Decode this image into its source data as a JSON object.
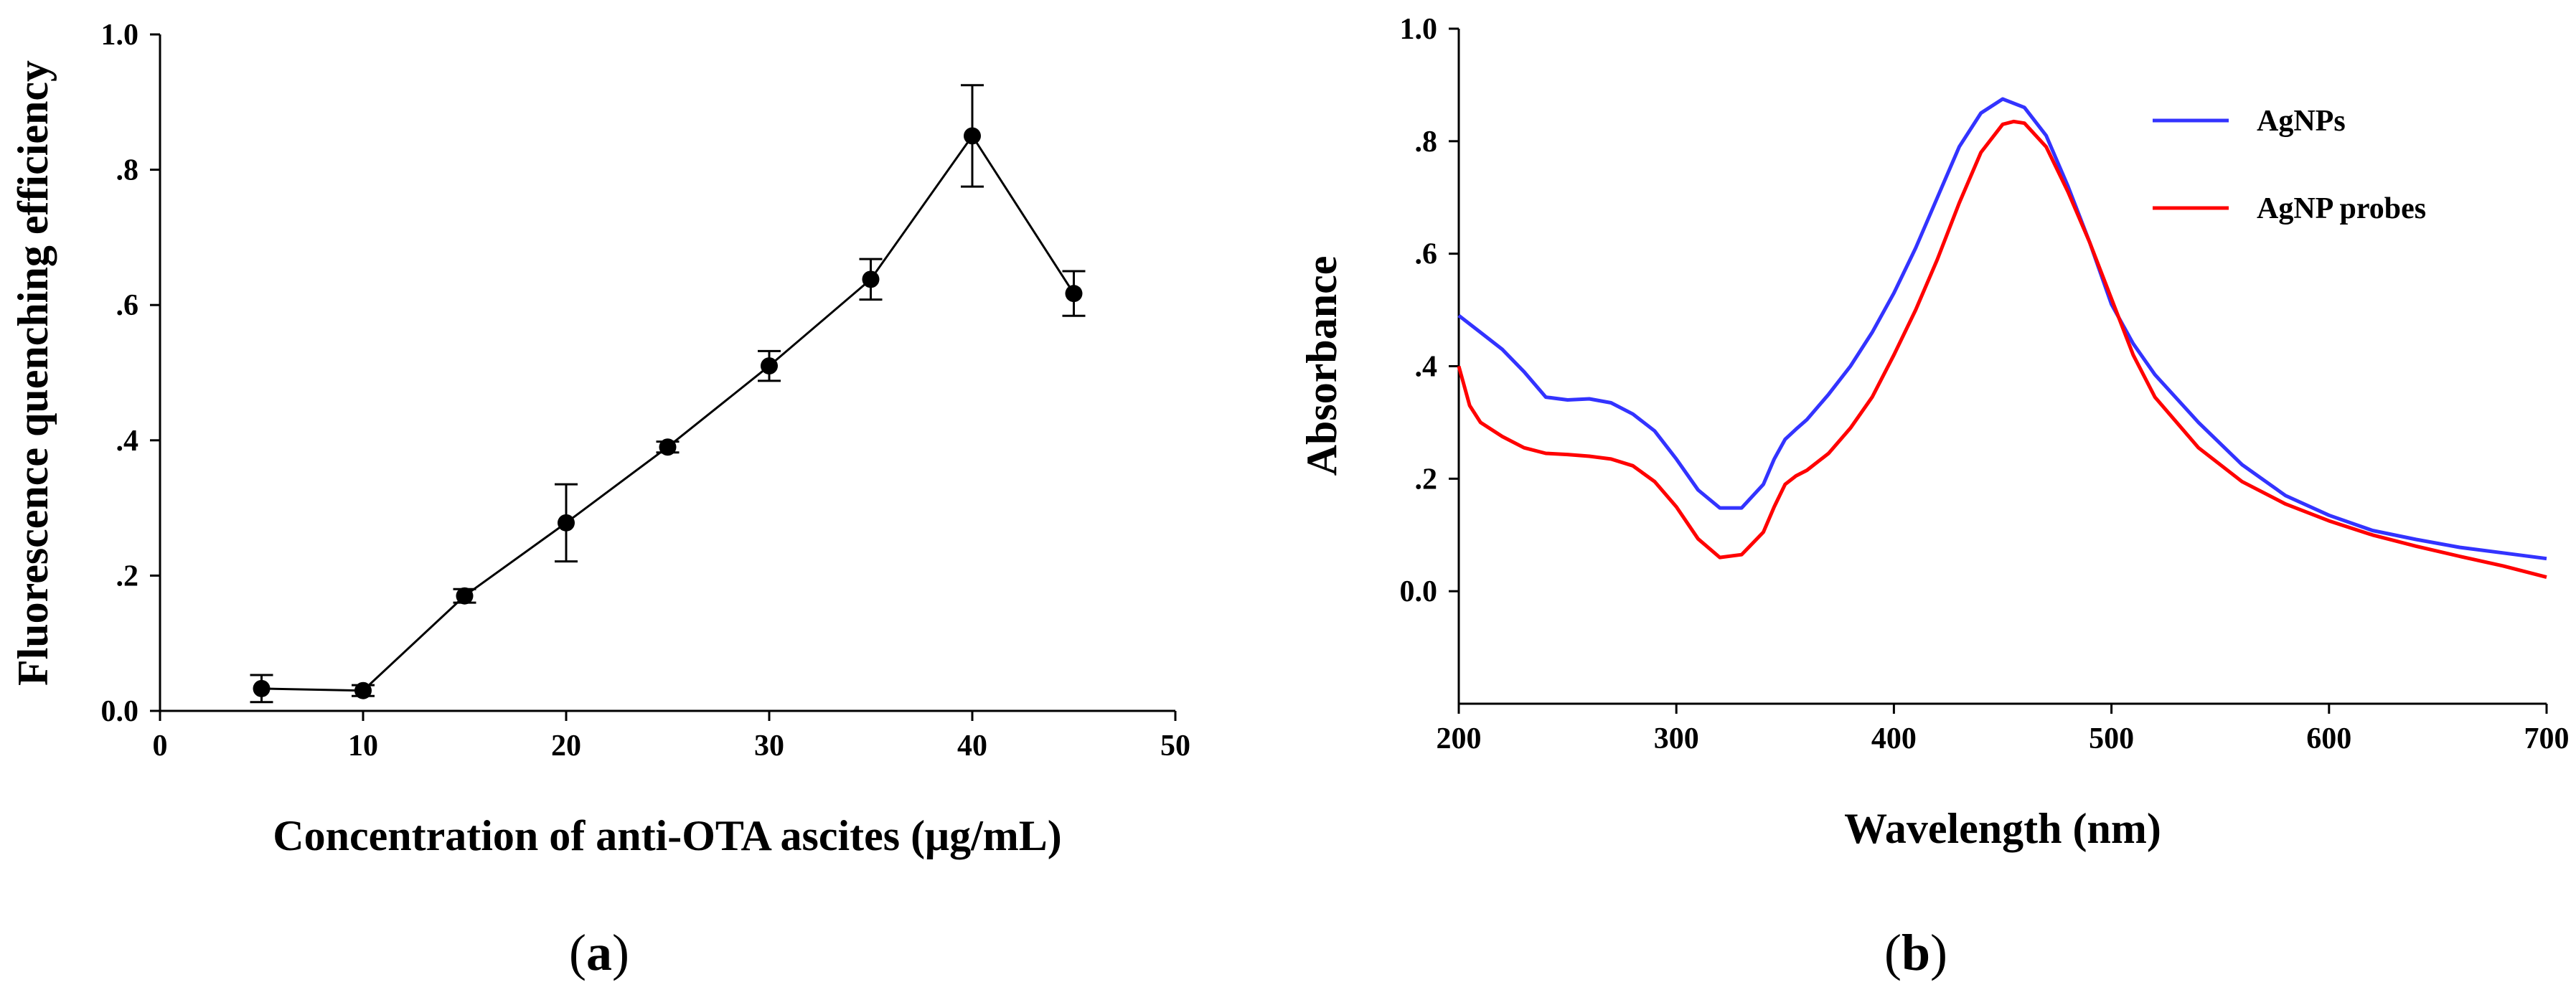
{
  "chart_data": [
    {
      "type": "line",
      "panel_label": "a",
      "title": "",
      "xlabel": "Concentration of anti-OTA ascites  (μg/mL)",
      "ylabel": "Fluorescence quenching efficiency",
      "xlim": [
        0,
        50
      ],
      "ylim": [
        0,
        1.0
      ],
      "xticks": [
        0,
        10,
        20,
        30,
        40,
        50
      ],
      "xtick_labels": [
        "0",
        "10",
        "20",
        "30",
        "40",
        "50"
      ],
      "yticks": [
        0,
        0.2,
        0.4,
        0.6,
        0.8,
        1.0
      ],
      "ytick_labels": [
        "0.0",
        ".2",
        ".4",
        ".6",
        ".8",
        "1.0"
      ],
      "grid": false,
      "series": [
        {
          "name": "quenching efficiency",
          "color": "#000000",
          "marker": "filled-circle",
          "x": [
            5,
            10,
            15,
            20,
            25,
            30,
            35,
            40,
            45
          ],
          "y": [
            0.033,
            0.03,
            0.17,
            0.278,
            0.39,
            0.51,
            0.638,
            0.85,
            0.617
          ],
          "error": [
            0.02,
            0.008,
            0.01,
            0.057,
            0.008,
            0.022,
            0.03,
            0.075,
            0.033
          ]
        }
      ]
    },
    {
      "type": "line",
      "panel_label": "b",
      "title": "",
      "xlabel": "Wavelength (nm)",
      "ylabel": "Absorbance",
      "xlim": [
        200,
        700
      ],
      "ylim": [
        -0.2,
        1.0
      ],
      "xticks": [
        200,
        300,
        400,
        500,
        600,
        700
      ],
      "xtick_labels": [
        "200",
        "300",
        "400",
        "500",
        "600",
        "700"
      ],
      "yticks": [
        0,
        0.2,
        0.4,
        0.6,
        0.8,
        1.0
      ],
      "ytick_labels": [
        "0.0",
        ".2",
        ".4",
        ".6",
        ".8",
        "1.0"
      ],
      "grid": false,
      "legend_position": "top-right",
      "series": [
        {
          "name": "AgNPs",
          "color": "#3333ff",
          "x": [
            200,
            210,
            220,
            230,
            240,
            250,
            260,
            270,
            280,
            290,
            300,
            310,
            320,
            330,
            340,
            345,
            350,
            355,
            360,
            370,
            380,
            390,
            400,
            410,
            420,
            430,
            440,
            450,
            460,
            470,
            480,
            490,
            500,
            510,
            520,
            540,
            560,
            580,
            600,
            620,
            640,
            660,
            680,
            700
          ],
          "y": [
            0.49,
            0.46,
            0.43,
            0.39,
            0.345,
            0.34,
            0.342,
            0.335,
            0.315,
            0.285,
            0.235,
            0.18,
            0.148,
            0.148,
            0.19,
            0.235,
            0.27,
            0.288,
            0.305,
            0.35,
            0.4,
            0.46,
            0.53,
            0.61,
            0.7,
            0.79,
            0.85,
            0.875,
            0.86,
            0.81,
            0.72,
            0.62,
            0.51,
            0.44,
            0.385,
            0.3,
            0.225,
            0.17,
            0.135,
            0.108,
            0.092,
            0.078,
            0.068,
            0.058
          ]
        },
        {
          "name": "AgNP probes",
          "color": "#ff0000",
          "x": [
            200,
            205,
            210,
            220,
            230,
            240,
            250,
            260,
            270,
            280,
            290,
            300,
            310,
            320,
            330,
            340,
            345,
            350,
            355,
            360,
            370,
            380,
            390,
            400,
            410,
            420,
            430,
            440,
            450,
            455,
            460,
            470,
            480,
            490,
            500,
            510,
            520,
            540,
            560,
            580,
            600,
            620,
            640,
            660,
            680,
            700
          ],
          "y": [
            0.4,
            0.33,
            0.3,
            0.275,
            0.255,
            0.245,
            0.243,
            0.24,
            0.235,
            0.223,
            0.195,
            0.15,
            0.093,
            0.06,
            0.065,
            0.105,
            0.15,
            0.19,
            0.205,
            0.215,
            0.245,
            0.29,
            0.345,
            0.42,
            0.5,
            0.59,
            0.69,
            0.78,
            0.83,
            0.835,
            0.832,
            0.79,
            0.71,
            0.62,
            0.52,
            0.42,
            0.345,
            0.255,
            0.195,
            0.155,
            0.125,
            0.1,
            0.08,
            0.062,
            0.045,
            0.025
          ]
        }
      ]
    }
  ]
}
